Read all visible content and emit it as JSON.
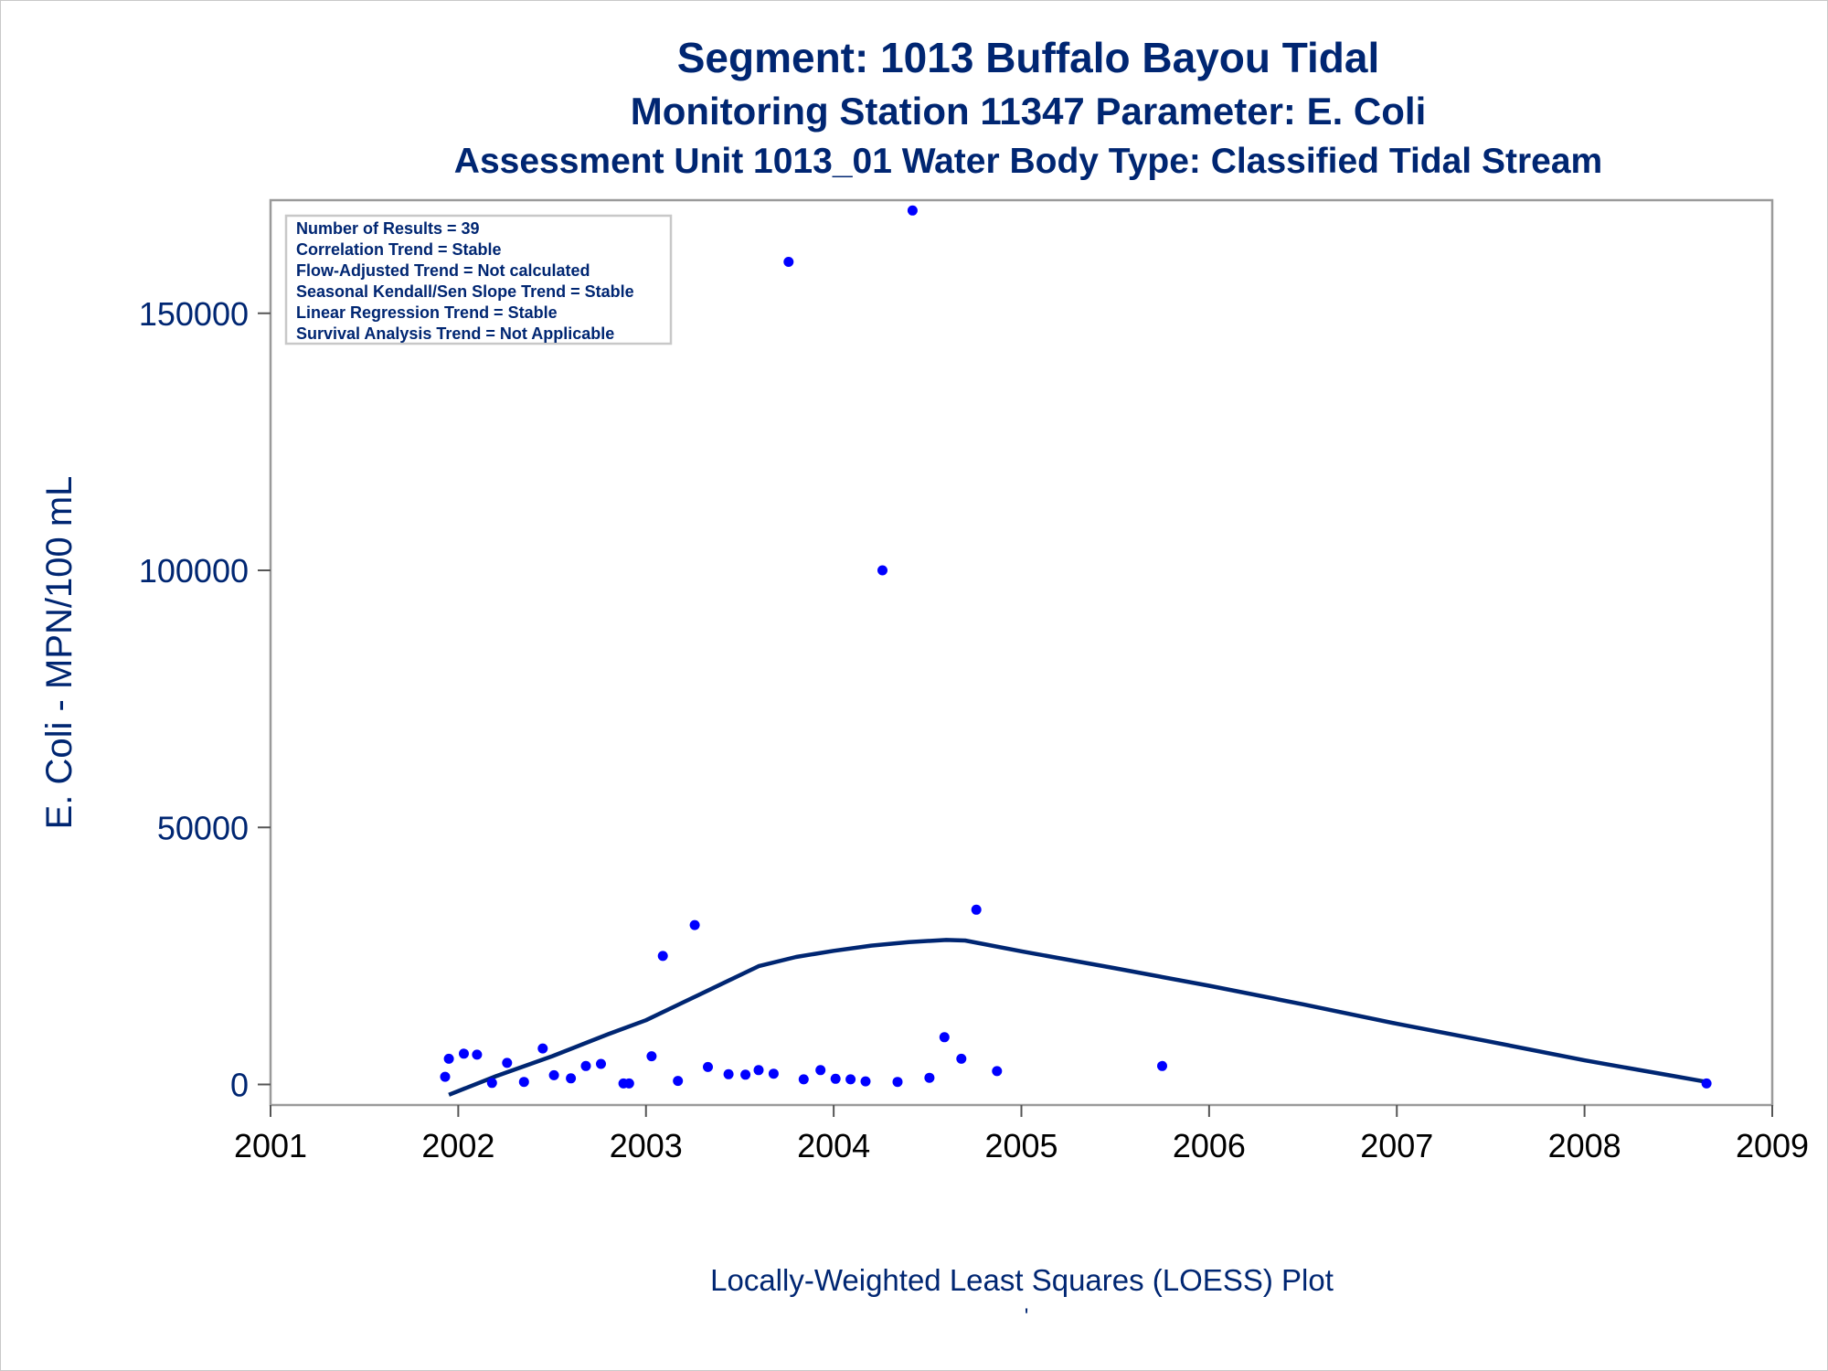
{
  "chart_data": {
    "type": "scatter",
    "title": "Segment: 1013  Buffalo Bayou Tidal",
    "subtitles": [
      "Monitoring Station 11347 Parameter: E. Coli",
      "Assessment Unit 1013_01   Water Body Type: Classified Tidal Stream"
    ],
    "xlabel": "Locally-Weighted Least Squares (LOESS) Plot",
    "ylabel": "E. Coli - MPN/100 mL",
    "footnote": "'",
    "xlim": [
      2001,
      2009
    ],
    "ylim": [
      -4000,
      172000
    ],
    "xticks": [
      "2001",
      "2002",
      "2003",
      "2004",
      "2005",
      "2006",
      "2007",
      "2008",
      "2009"
    ],
    "yticks": [
      "0",
      "50000",
      "100000",
      "150000"
    ],
    "stats_box": [
      "Number of Results = 39",
      "Correlation Trend = Stable",
      "Flow-Adjusted Trend = Not calculated",
      "Seasonal Kendall/Sen Slope Trend = Stable",
      "Linear Regression Trend = Stable",
      "Survival Analysis Trend = Not Applicable"
    ],
    "points_color": "#0000ff",
    "series": [
      {
        "kind": "points",
        "x": [
          2001.93,
          2001.95,
          2002.03,
          2002.1,
          2002.18,
          2002.26,
          2002.35,
          2002.45,
          2002.51,
          2002.6,
          2002.68,
          2002.76,
          2002.88,
          2002.91,
          2003.03,
          2003.09,
          2003.17,
          2003.26,
          2003.33,
          2003.44,
          2003.53,
          2003.6,
          2003.68,
          2003.76,
          2003.84,
          2003.93,
          2004.01,
          2004.09,
          2004.17,
          2004.26,
          2004.34,
          2004.42,
          2004.51,
          2004.59,
          2004.68,
          2004.76,
          2004.87,
          2005.75,
          2008.65
        ],
        "y": [
          1500,
          5000,
          6000,
          5800,
          300,
          4200,
          500,
          7000,
          1800,
          1200,
          3600,
          4000,
          200,
          200,
          5500,
          25000,
          700,
          31000,
          3400,
          2000,
          1900,
          2800,
          2100,
          160000,
          1000,
          2800,
          1100,
          1000,
          600,
          100000,
          500,
          170000,
          1300,
          9200,
          5000,
          34000,
          2600,
          3600,
          200
        ]
      },
      {
        "kind": "loess",
        "color": "#002672",
        "x": [
          2001.95,
          2002.2,
          2002.5,
          2002.8,
          2003.0,
          2003.2,
          2003.4,
          2003.6,
          2003.8,
          2004.0,
          2004.2,
          2004.4,
          2004.6,
          2004.7,
          2005.0,
          2005.5,
          2006.0,
          2006.5,
          2007.0,
          2007.5,
          2008.0,
          2008.45,
          2008.65
        ],
        "y": [
          -2000,
          1600,
          5500,
          9800,
          12500,
          16000,
          19500,
          23000,
          24800,
          26000,
          27000,
          27700,
          28100,
          28000,
          25900,
          22600,
          19200,
          15600,
          11800,
          8300,
          4700,
          1800,
          500
        ]
      }
    ]
  }
}
